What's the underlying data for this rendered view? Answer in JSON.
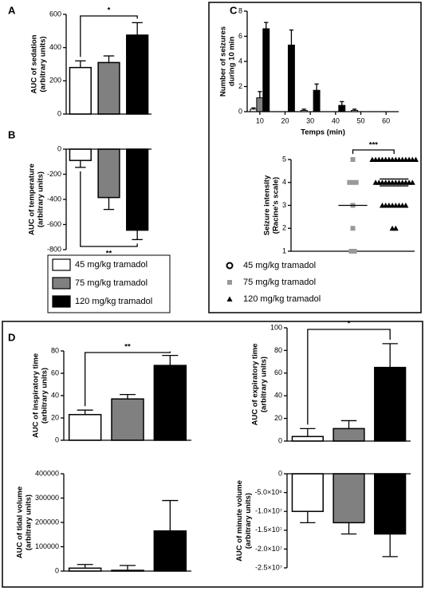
{
  "legend": {
    "entries": [
      {
        "name": "45 mg/kg tramadol",
        "color": "#ffffff"
      },
      {
        "name": "75 mg/kg tramadol",
        "color": "#808080"
      },
      {
        "name": "120 mg/kg tramadol",
        "color": "#000000"
      }
    ]
  },
  "chart_data": [
    {
      "type": "bar",
      "label": "A",
      "ylabel": [
        "AUC of sedation",
        "(arbitrary units)"
      ],
      "categories": [
        null,
        null,
        null
      ],
      "values": [
        280,
        310,
        475
      ],
      "errors": [
        40,
        40,
        75
      ],
      "colors": [
        "#ffffff",
        "#808080",
        "#000000"
      ],
      "ylim": [
        0,
        600
      ],
      "yticks": [
        0,
        200,
        400,
        600
      ],
      "significance": "*"
    },
    {
      "type": "bar",
      "label": "B",
      "ylabel": [
        "AUC of temperature",
        "(arbitrary units)"
      ],
      "categories": [
        null,
        null,
        null
      ],
      "values": [
        -90,
        -385,
        -645
      ],
      "errors": [
        55,
        95,
        75
      ],
      "colors": [
        "#ffffff",
        "#808080",
        "#000000"
      ],
      "ylim": [
        -800,
        0
      ],
      "yticks": [
        -800,
        -600,
        -400,
        -200,
        0
      ],
      "significance": "**"
    },
    {
      "type": "grouped-bar",
      "label": "C",
      "ylabel": [
        "Number of seizures",
        "during 10 min"
      ],
      "xlabel": "Temps (min)",
      "categories": [
        "10",
        "20",
        "30",
        "40",
        "50",
        "60"
      ],
      "series": [
        {
          "color": "#ffffff",
          "values": [
            0.2,
            0,
            0.1,
            0,
            0.1,
            0
          ],
          "errors": [
            0.1,
            0,
            0.1,
            0,
            0.1,
            0
          ]
        },
        {
          "color": "#808080",
          "values": [
            1.1,
            0,
            0,
            0,
            0,
            0
          ],
          "errors": [
            0.5,
            0,
            0,
            0,
            0,
            0
          ]
        },
        {
          "color": "#000000",
          "values": [
            6.6,
            5.3,
            1.7,
            0.5,
            0,
            0
          ],
          "errors": [
            0.5,
            1.2,
            0.5,
            0.3,
            0,
            0
          ]
        }
      ],
      "ylim": [
        0,
        8
      ],
      "yticks": [
        0,
        2,
        4,
        6,
        8
      ]
    },
    {
      "type": "strip",
      "ylabel": [
        "Seizure intensity",
        "(Racine's scale)"
      ],
      "categories": [
        null,
        null,
        null
      ],
      "series": [
        {
          "name": "45 mg/kg tramadol",
          "marker": "circle",
          "color": "#000000",
          "values": [],
          "lines": []
        },
        {
          "name": "75 mg/kg tramadol",
          "marker": "square",
          "color": "#999999",
          "values": [
            5,
            4,
            4,
            4,
            3,
            2,
            1,
            1
          ],
          "lines": [
            3
          ]
        },
        {
          "name": "120 mg/kg tramadol",
          "marker": "triangle",
          "color": "#000000",
          "values": [
            5,
            5,
            5,
            5,
            5,
            5,
            5,
            5,
            5,
            5,
            5,
            5,
            5,
            5,
            4,
            4,
            4,
            4,
            4,
            4,
            4,
            4,
            4,
            4,
            4,
            4,
            3,
            3,
            3,
            3,
            3,
            3,
            3,
            3,
            2,
            2
          ],
          "lines": [
            4.15,
            3.85
          ]
        }
      ],
      "ylim": [
        1,
        5
      ],
      "yticks": [
        1,
        2,
        3,
        4,
        5
      ],
      "significance": "***"
    },
    {
      "type": "bar",
      "label": "D",
      "ylabel": [
        "AUC of inspiratory time",
        "(arbitrary units)"
      ],
      "categories": [
        null,
        null,
        null
      ],
      "values": [
        23,
        37,
        67
      ],
      "errors": [
        4,
        4,
        9
      ],
      "colors": [
        "#ffffff",
        "#808080",
        "#000000"
      ],
      "ylim": [
        0,
        80
      ],
      "yticks": [
        0,
        20,
        40,
        60,
        80
      ],
      "significance": "**"
    },
    {
      "type": "bar",
      "ylabel": [
        "AUC of expiratory time",
        "(arbitrary units)"
      ],
      "categories": [
        null,
        null,
        null
      ],
      "values": [
        4,
        11,
        65
      ],
      "errors": [
        7,
        7,
        21
      ],
      "colors": [
        "#ffffff",
        "#808080",
        "#000000"
      ],
      "ylim": [
        0,
        100
      ],
      "yticks": [
        0,
        20,
        40,
        60,
        80,
        100
      ],
      "significance": "*"
    },
    {
      "type": "bar",
      "ylabel": [
        "AUC of tidal volume",
        "(arbitrary units)"
      ],
      "categories": [
        null,
        null,
        null
      ],
      "values": [
        12000,
        3000,
        165000
      ],
      "errors": [
        15000,
        20000,
        125000
      ],
      "colors": [
        "#ffffff",
        "#808080",
        "#000000"
      ],
      "ylim": [
        0,
        400000
      ],
      "yticks": [
        0,
        100000,
        200000,
        300000,
        400000
      ]
    },
    {
      "type": "bar",
      "ylabel": [
        "AUC of minute volume",
        "(arbitrary units)"
      ],
      "categories": [
        null,
        null,
        null
      ],
      "values": [
        -10000000,
        -13000000,
        -16000000
      ],
      "errors": [
        3000000,
        3000000,
        6000000
      ],
      "colors": [
        "#ffffff",
        "#808080",
        "#000000"
      ],
      "ylim": [
        -25000000,
        0
      ],
      "yticks": [
        {
          "value": -25000000,
          "label": "-2.5×10⁷"
        },
        {
          "value": -20000000,
          "label": "-2.0×10⁷"
        },
        {
          "value": -15000000,
          "label": "-1.5×10⁷"
        },
        {
          "value": -10000000,
          "label": "-1.0×10⁷"
        },
        {
          "value": -5000000,
          "label": "-5.0×10⁶"
        },
        0
      ]
    }
  ]
}
